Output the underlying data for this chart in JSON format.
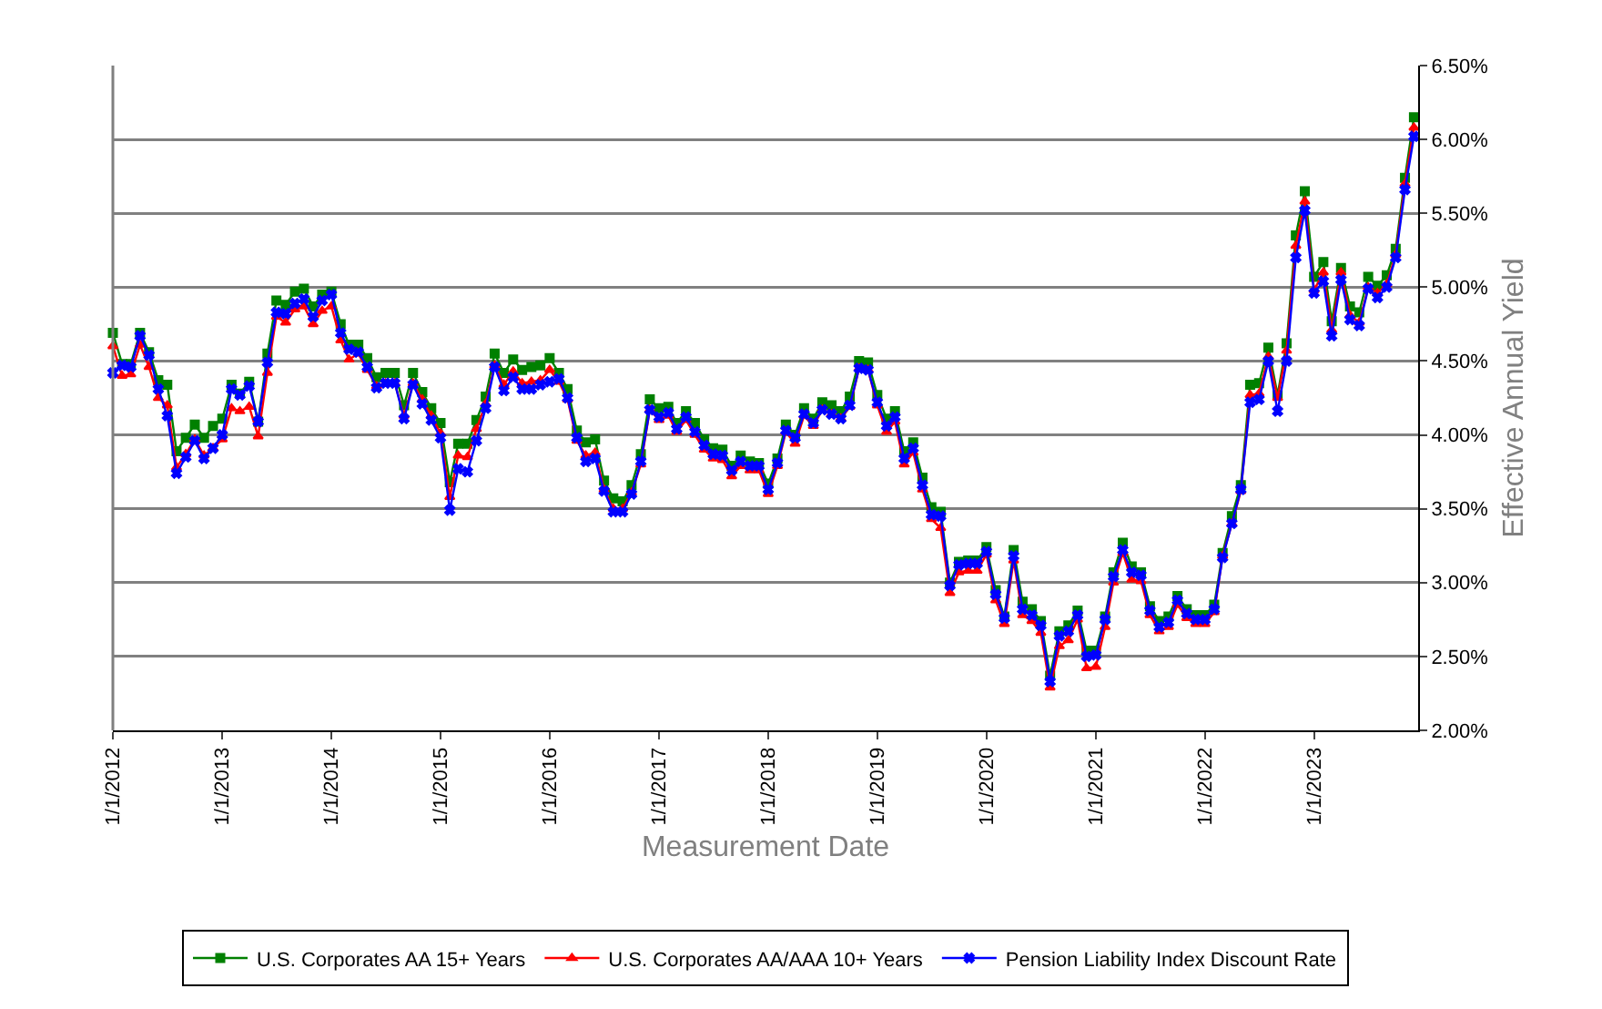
{
  "chart_data": {
    "type": "line",
    "xlabel": "Measurement Date",
    "ylabel": "Effective Annual Yield",
    "grid": "y",
    "legend": "bottom",
    "line_style": "solid",
    "xlim": [
      "2012-01-01",
      "2023-12-15"
    ],
    "xticks": [
      {
        "value": "2012-01-01",
        "label": "1/1/2012"
      },
      {
        "value": "2013-01-01",
        "label": "1/1/2013"
      },
      {
        "value": "2014-01-01",
        "label": "1/1/2014"
      },
      {
        "value": "2015-01-01",
        "label": "1/1/2015"
      },
      {
        "value": "2016-01-01",
        "label": "1/1/2016"
      },
      {
        "value": "2017-01-01",
        "label": "1/1/2017"
      },
      {
        "value": "2018-01-01",
        "label": "1/1/2018"
      },
      {
        "value": "2019-01-01",
        "label": "1/1/2019"
      },
      {
        "value": "2020-01-01",
        "label": "1/1/2020"
      },
      {
        "value": "2021-01-01",
        "label": "1/1/2021"
      },
      {
        "value": "2022-01-01",
        "label": "1/1/2022"
      },
      {
        "value": "2023-01-01",
        "label": "1/1/2023"
      }
    ],
    "ylim": [
      2.0,
      6.5
    ],
    "yticks": [
      {
        "value": 2.0,
        "label": "2.00%"
      },
      {
        "value": 2.5,
        "label": "2.50%"
      },
      {
        "value": 3.0,
        "label": "3.00%"
      },
      {
        "value": 3.5,
        "label": "3.50%"
      },
      {
        "value": 4.0,
        "label": "4.00%"
      },
      {
        "value": 4.5,
        "label": "4.50%"
      },
      {
        "value": 5.0,
        "label": "5.00%"
      },
      {
        "value": 5.5,
        "label": "5.50%"
      },
      {
        "value": 6.0,
        "label": "6.00%"
      },
      {
        "value": 6.5,
        "label": "6.50%"
      }
    ],
    "x": [
      "2012-01",
      "2012-02",
      "2012-03",
      "2012-04",
      "2012-05",
      "2012-06",
      "2012-07",
      "2012-08",
      "2012-09",
      "2012-10",
      "2012-11",
      "2012-12",
      "2013-01",
      "2013-02",
      "2013-03",
      "2013-04",
      "2013-05",
      "2013-06",
      "2013-07",
      "2013-08",
      "2013-09",
      "2013-10",
      "2013-11",
      "2013-12",
      "2014-01",
      "2014-02",
      "2014-03",
      "2014-04",
      "2014-05",
      "2014-06",
      "2014-07",
      "2014-08",
      "2014-09",
      "2014-10",
      "2014-11",
      "2014-12",
      "2015-01",
      "2015-02",
      "2015-03",
      "2015-04",
      "2015-05",
      "2015-06",
      "2015-07",
      "2015-08",
      "2015-09",
      "2015-10",
      "2015-11",
      "2015-12",
      "2016-01",
      "2016-02",
      "2016-03",
      "2016-04",
      "2016-05",
      "2016-06",
      "2016-07",
      "2016-08",
      "2016-09",
      "2016-10",
      "2016-11",
      "2016-12",
      "2017-01",
      "2017-02",
      "2017-03",
      "2017-04",
      "2017-05",
      "2017-06",
      "2017-07",
      "2017-08",
      "2017-09",
      "2017-10",
      "2017-11",
      "2017-12",
      "2018-01",
      "2018-02",
      "2018-03",
      "2018-04",
      "2018-05",
      "2018-06",
      "2018-07",
      "2018-08",
      "2018-09",
      "2018-10",
      "2018-11",
      "2018-12",
      "2019-01",
      "2019-02",
      "2019-03",
      "2019-04",
      "2019-05",
      "2019-06",
      "2019-07",
      "2019-08",
      "2019-09",
      "2019-10",
      "2019-11",
      "2019-12",
      "2020-01",
      "2020-02",
      "2020-03",
      "2020-04",
      "2020-05",
      "2020-06",
      "2020-07",
      "2020-08",
      "2020-09",
      "2020-10",
      "2020-11",
      "2020-12",
      "2021-01",
      "2021-02",
      "2021-03",
      "2021-04",
      "2021-05",
      "2021-06",
      "2021-07",
      "2021-08",
      "2021-09",
      "2021-10",
      "2021-11",
      "2021-12",
      "2022-01",
      "2022-02",
      "2022-03",
      "2022-04",
      "2022-05",
      "2022-06",
      "2022-07",
      "2022-08",
      "2022-09",
      "2022-10",
      "2022-11",
      "2022-12",
      "2023-01",
      "2023-02",
      "2023-03",
      "2023-04",
      "2023-05",
      "2023-06",
      "2023-07",
      "2023-08",
      "2023-09",
      "2023-10",
      "2023-11",
      "2023-12"
    ],
    "series": [
      {
        "name": "U.S. Corporates AA 15+ Years",
        "color": "#008000",
        "marker": "square",
        "values": [
          4.69,
          4.48,
          4.48,
          4.69,
          4.56,
          4.37,
          4.34,
          3.89,
          3.98,
          4.07,
          3.98,
          4.06,
          4.11,
          4.34,
          4.28,
          4.36,
          4.09,
          4.55,
          4.91,
          4.88,
          4.97,
          4.99,
          4.87,
          4.95,
          4.97,
          4.75,
          4.61,
          4.61,
          4.52,
          4.39,
          4.42,
          4.42,
          4.2,
          4.42,
          4.29,
          4.18,
          4.08,
          3.68,
          3.94,
          3.94,
          4.1,
          4.26,
          4.55,
          4.42,
          4.51,
          4.44,
          4.46,
          4.47,
          4.52,
          4.42,
          4.31,
          4.03,
          3.95,
          3.97,
          3.69,
          3.57,
          3.55,
          3.66,
          3.87,
          4.24,
          4.18,
          4.19,
          4.08,
          4.16,
          4.08,
          3.97,
          3.91,
          3.9,
          3.79,
          3.86,
          3.82,
          3.81,
          3.67,
          3.84,
          4.07,
          4.0,
          4.18,
          4.11,
          4.22,
          4.2,
          4.16,
          4.26,
          4.5,
          4.49,
          4.27,
          4.11,
          4.16,
          3.89,
          3.95,
          3.71,
          3.51,
          3.48,
          3.0,
          3.14,
          3.15,
          3.15,
          3.24,
          2.95,
          2.77,
          3.22,
          2.87,
          2.82,
          2.74,
          2.37,
          2.67,
          2.71,
          2.81,
          2.54,
          2.54,
          2.77,
          3.07,
          3.27,
          3.11,
          3.07,
          2.84,
          2.74,
          2.77,
          2.91,
          2.82,
          2.78,
          2.78,
          2.85,
          3.2,
          3.45,
          3.66,
          4.34,
          4.35,
          4.59,
          4.27,
          4.62,
          5.35,
          5.65,
          5.07,
          5.17,
          4.77,
          5.13,
          4.87,
          4.83,
          5.07,
          5.01,
          5.08,
          5.26,
          5.74,
          6.15
        ]
      },
      {
        "name": "U.S. Corporates AA/AAA 10+ Years",
        "color": "#ff0000",
        "marker": "triangle",
        "values": [
          4.6,
          4.4,
          4.41,
          4.61,
          4.46,
          4.25,
          4.2,
          3.78,
          3.87,
          3.97,
          3.86,
          3.91,
          3.97,
          4.18,
          4.16,
          4.19,
          3.99,
          4.42,
          4.8,
          4.76,
          4.85,
          4.87,
          4.75,
          4.84,
          4.87,
          4.64,
          4.51,
          4.55,
          4.44,
          4.33,
          4.35,
          4.35,
          4.13,
          4.35,
          4.24,
          4.13,
          4.01,
          3.58,
          3.86,
          3.85,
          4.04,
          4.21,
          4.47,
          4.34,
          4.43,
          4.35,
          4.36,
          4.37,
          4.44,
          4.36,
          4.24,
          3.96,
          3.86,
          3.88,
          3.63,
          3.5,
          3.5,
          3.61,
          3.8,
          4.17,
          4.1,
          4.13,
          4.02,
          4.1,
          4.0,
          3.9,
          3.84,
          3.83,
          3.72,
          3.79,
          3.76,
          3.76,
          3.6,
          3.79,
          4.02,
          3.94,
          4.13,
          4.06,
          4.17,
          4.14,
          4.11,
          4.19,
          4.45,
          4.44,
          4.2,
          4.02,
          4.09,
          3.8,
          3.88,
          3.63,
          3.43,
          3.37,
          2.93,
          3.07,
          3.08,
          3.08,
          3.19,
          2.88,
          2.72,
          3.15,
          2.78,
          2.74,
          2.66,
          2.29,
          2.57,
          2.61,
          2.75,
          2.42,
          2.43,
          2.7,
          3.0,
          3.2,
          3.02,
          3.01,
          2.78,
          2.67,
          2.7,
          2.85,
          2.76,
          2.72,
          2.72,
          2.8,
          3.18,
          3.4,
          3.62,
          4.27,
          4.28,
          4.53,
          4.25,
          4.57,
          5.28,
          5.58,
          4.98,
          5.1,
          4.71,
          5.1,
          4.81,
          4.76,
          5.0,
          4.96,
          5.02,
          5.22,
          5.7,
          6.08
        ]
      },
      {
        "name": "Pension Liability Index Discount Rate",
        "color": "#0000ff",
        "marker": "cross",
        "values": [
          4.42,
          4.47,
          4.46,
          4.67,
          4.54,
          4.31,
          4.13,
          3.74,
          3.85,
          3.96,
          3.84,
          3.91,
          4.0,
          4.31,
          4.27,
          4.33,
          4.09,
          4.49,
          4.83,
          4.82,
          4.89,
          4.92,
          4.8,
          4.91,
          4.95,
          4.69,
          4.58,
          4.56,
          4.46,
          4.32,
          4.35,
          4.35,
          4.11,
          4.34,
          4.21,
          4.1,
          3.98,
          3.49,
          3.77,
          3.75,
          3.96,
          4.18,
          4.46,
          4.3,
          4.39,
          4.31,
          4.31,
          4.34,
          4.36,
          4.38,
          4.25,
          3.98,
          3.82,
          3.84,
          3.62,
          3.48,
          3.48,
          3.6,
          3.82,
          4.17,
          4.12,
          4.15,
          4.04,
          4.12,
          4.02,
          3.93,
          3.87,
          3.86,
          3.76,
          3.82,
          3.79,
          3.79,
          3.63,
          3.81,
          4.03,
          3.98,
          4.14,
          4.08,
          4.17,
          4.14,
          4.11,
          4.2,
          4.45,
          4.44,
          4.22,
          4.06,
          4.12,
          3.84,
          3.91,
          3.66,
          3.46,
          3.45,
          2.98,
          3.12,
          3.13,
          3.13,
          3.21,
          2.92,
          2.76,
          3.18,
          2.82,
          2.78,
          2.71,
          2.33,
          2.64,
          2.67,
          2.78,
          2.5,
          2.51,
          2.75,
          3.04,
          3.22,
          3.07,
          3.05,
          2.81,
          2.7,
          2.73,
          2.88,
          2.79,
          2.75,
          2.75,
          2.82,
          3.17,
          3.4,
          3.63,
          4.22,
          4.24,
          4.5,
          4.16,
          4.5,
          5.2,
          5.52,
          4.96,
          5.04,
          4.67,
          5.05,
          4.78,
          4.74,
          4.99,
          4.93,
          5.0,
          5.2,
          5.66,
          6.02
        ]
      }
    ]
  }
}
